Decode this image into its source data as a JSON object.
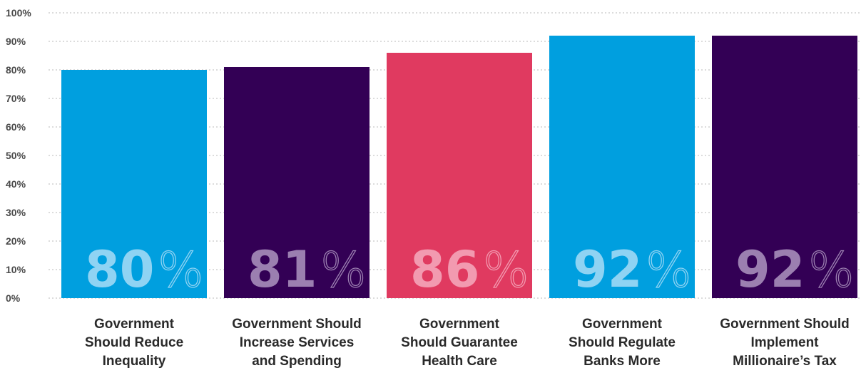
{
  "chart_data": {
    "type": "bar",
    "categories": [
      [
        "Government",
        "Should Reduce",
        "Inequality"
      ],
      [
        "Government Should",
        "Increase Services",
        "and Spending"
      ],
      [
        "Government",
        "Should Guarantee",
        "Health Care"
      ],
      [
        "Government",
        "Should Regulate",
        "Banks More"
      ],
      [
        "Government Should",
        "Implement",
        "Millionaire’s Tax"
      ]
    ],
    "values": [
      80,
      81,
      86,
      92,
      92
    ],
    "value_labels": [
      "80",
      "81",
      "86",
      "92",
      "92"
    ],
    "value_suffix": "%",
    "yticks": [
      "0%",
      "10%",
      "20%",
      "30%",
      "40%",
      "50%",
      "60%",
      "70%",
      "80%",
      "90%",
      "100%"
    ],
    "ylim": [
      0,
      100
    ],
    "grid": true,
    "colors": {
      "bars": [
        "#009fdf",
        "#330055",
        "#e03a60",
        "#009fdf",
        "#330055"
      ],
      "value_text": [
        "#8fd3f3",
        "#9b7fb0",
        "#f29ab0",
        "#8fd3f3",
        "#9b7fb0"
      ]
    }
  }
}
